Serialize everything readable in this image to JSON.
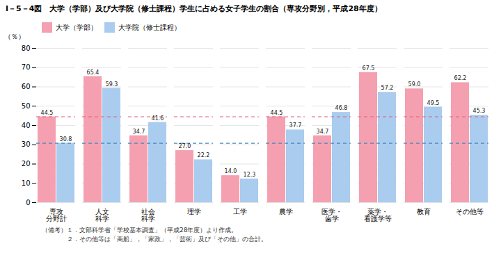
{
  "chart_data": {
    "type": "bar",
    "title": "I－5－4図　大学（学部）及び大学院（修士課程）学生に占める女子学生の割合（専攻分野別，平成28年度）",
    "categories": [
      "専攻\n分野計",
      "人文\n科学",
      "社会\n科学",
      "理学",
      "工学",
      "農学",
      "医学・\n歯学",
      "薬学・\n看護学等",
      "教育",
      "その他等"
    ],
    "series": [
      {
        "name": "大学（学部）",
        "color": "#F4A0B0",
        "values": [
          44.5,
          65.4,
          34.7,
          27.0,
          14.0,
          44.5,
          34.7,
          67.5,
          59.0,
          62.2
        ],
        "value_labels": [
          "44.5",
          "65.4",
          "34.7",
          "27.0",
          "14.0",
          "44.5",
          "34.7",
          "67.5",
          "59.0",
          "62.2"
        ]
      },
      {
        "name": "大学院（修士課程）",
        "color": "#AACCEE",
        "values": [
          30.8,
          59.3,
          41.6,
          22.2,
          12.3,
          37.7,
          46.8,
          57.2,
          49.5,
          45.3
        ]
      }
    ],
    "reference_lines": [
      {
        "value": 44.5,
        "color": "#E0607A"
      },
      {
        "value": 30.8,
        "color": "#4488BB"
      }
    ],
    "ylabel": "（％）",
    "ylim": [
      0,
      80
    ],
    "yticks": [
      0,
      10,
      20,
      30,
      40,
      50,
      60,
      70,
      80
    ],
    "grid": true,
    "legend": "top",
    "data_labels": true,
    "notes": [
      "（備考）１．文部科学省「学校基本調査」（平成28年度）より作成。",
      "　　　　２．その他等は「商船」，「家政」，「芸術」及び「その他」の合計。"
    ]
  }
}
